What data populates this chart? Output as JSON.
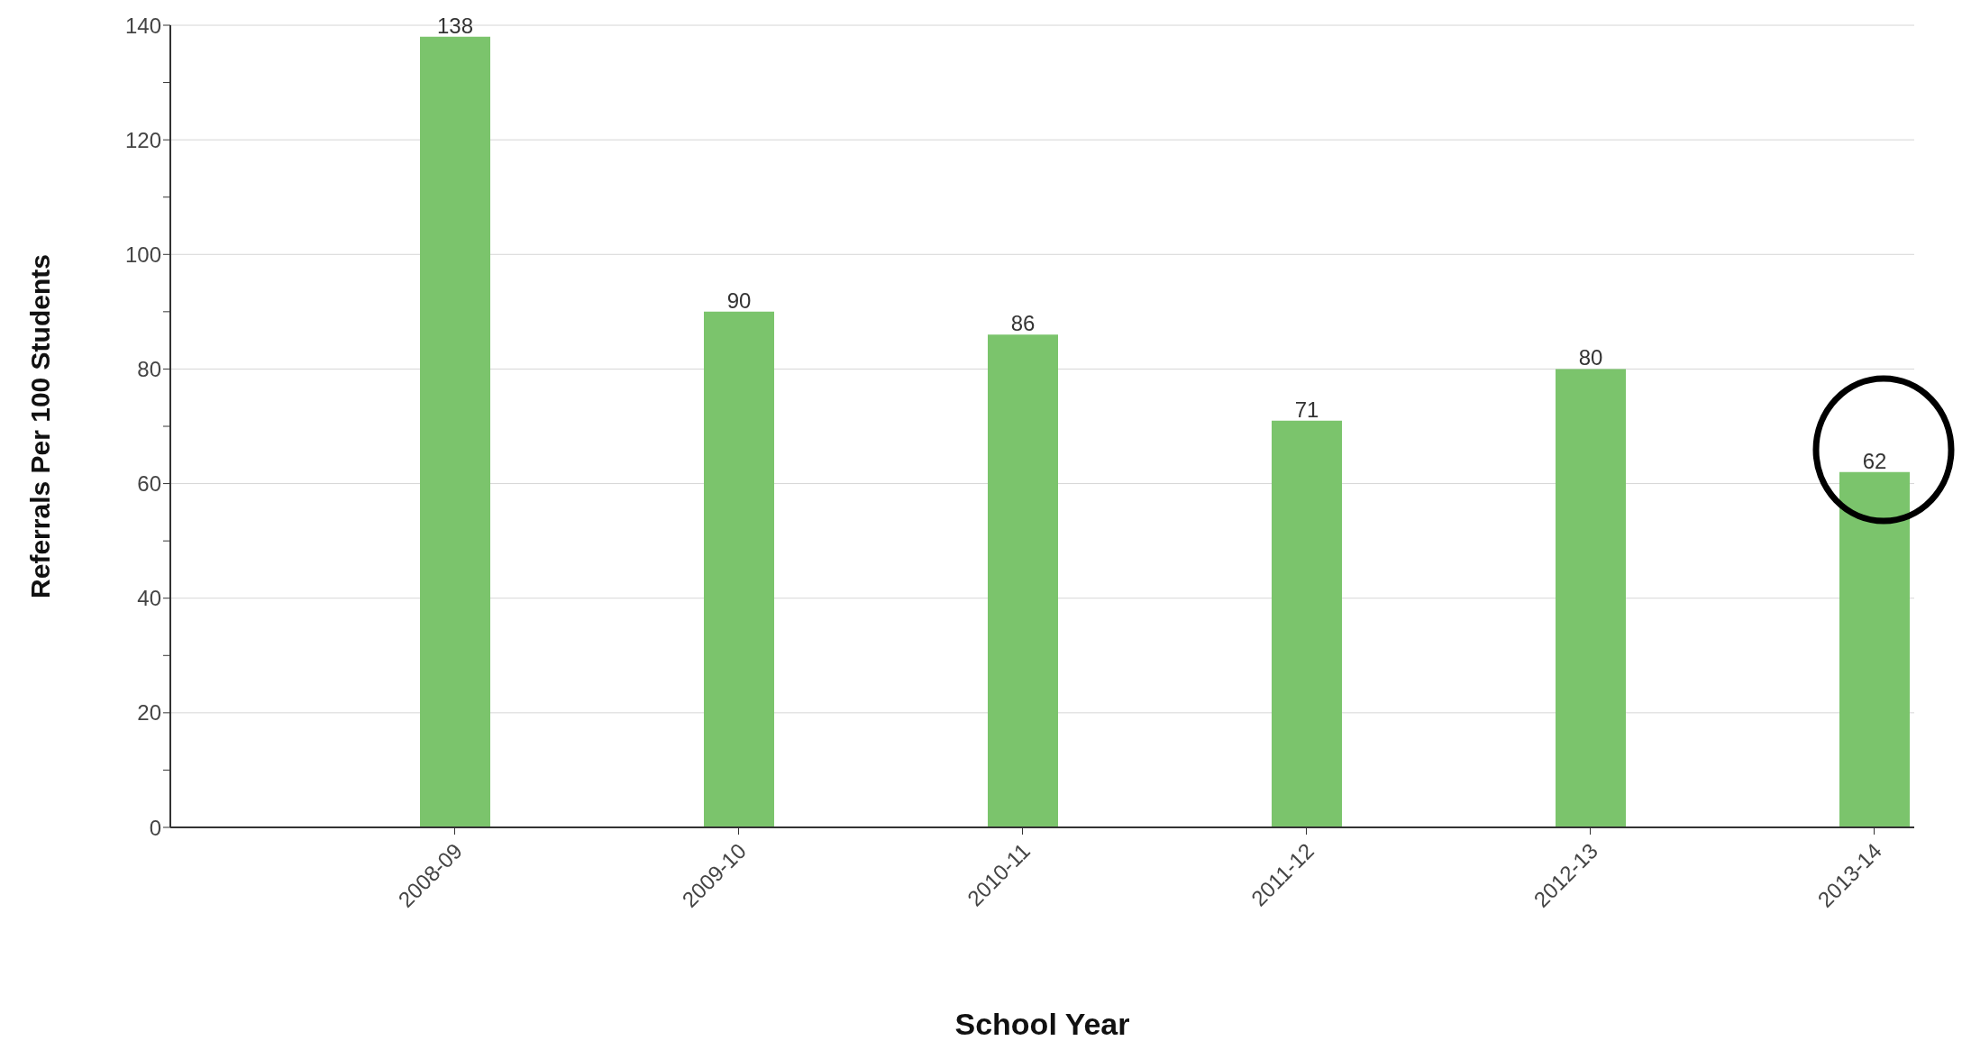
{
  "chart_data": {
    "type": "bar",
    "xlabel": "School Year",
    "ylabel": "Referrals Per 100 Students",
    "categories": [
      "2008-09",
      "2009-10",
      "2010-11",
      "2011-12",
      "2012-13",
      "2013-14"
    ],
    "values": [
      138,
      90,
      86,
      71,
      80,
      62
    ],
    "color": "#7bc46c",
    "ylim": [
      0,
      140
    ],
    "yticks": [
      0,
      {
        "value": 10,
        "label": null
      },
      20,
      {
        "value": 30,
        "label": null
      },
      40,
      {
        "value": 50,
        "label": null
      },
      60,
      {
        "value": 70,
        "label": null
      },
      80,
      {
        "value": 90,
        "label": null
      },
      100,
      {
        "value": 110,
        "label": null
      },
      120,
      {
        "value": 130,
        "label": null
      },
      140
    ],
    "grid": "y",
    "data_labels": true
  }
}
